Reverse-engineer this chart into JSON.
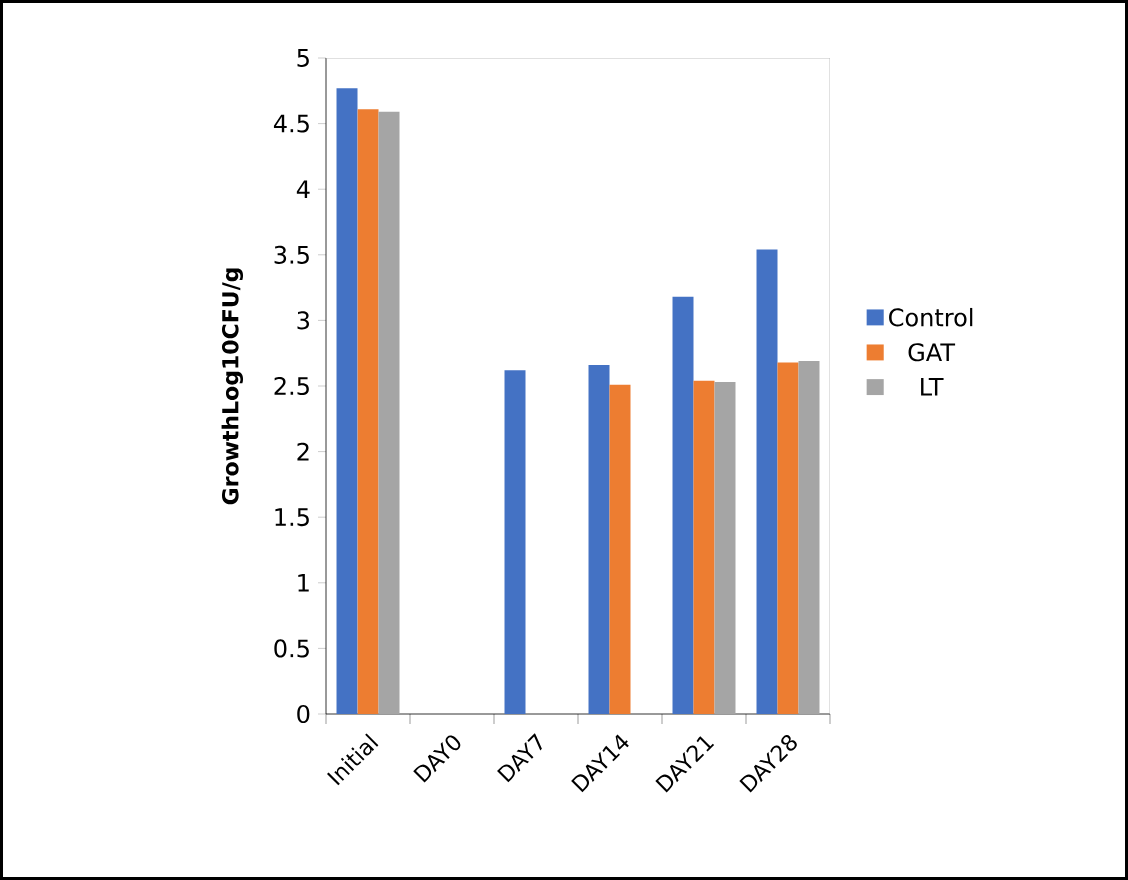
{
  "chart_data": {
    "type": "bar",
    "ylabel": "GrowthLog10CFU/g",
    "categories": [
      "Initial",
      "DAY0",
      "DAY7",
      "DAY14",
      "DAY21",
      "DAY28"
    ],
    "series": [
      {
        "name": "Control",
        "color": "#4472c4",
        "values": [
          4.77,
          null,
          2.62,
          2.66,
          3.18,
          3.54
        ]
      },
      {
        "name": "GAT",
        "color": "#ed7d31",
        "values": [
          4.61,
          null,
          null,
          2.51,
          2.54,
          2.68
        ]
      },
      {
        "name": "LT",
        "color": "#a5a5a5",
        "values": [
          4.59,
          null,
          null,
          null,
          2.53,
          2.69
        ]
      }
    ],
    "ylim": [
      0,
      5
    ],
    "yticks": [
      0,
      0.5,
      1,
      1.5,
      2,
      2.5,
      3,
      3.5,
      4,
      4.5,
      5
    ],
    "legend": "right"
  }
}
